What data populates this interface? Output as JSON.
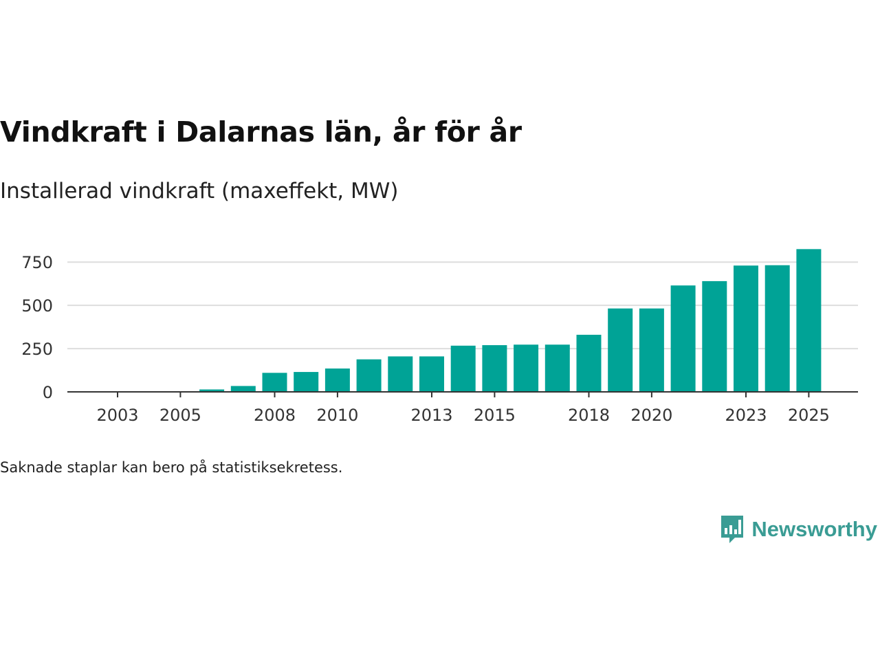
{
  "title": "Vindkraft i Dalarnas län, år för år",
  "subtitle": "Installerad vindkraft (maxeffekt, MW)",
  "footnote": "Saknade staplar kan bero på statistiksekretess.",
  "brand": {
    "name": "Newsworthy",
    "icon": "newsworthy-logo-icon"
  },
  "colors": {
    "bar": "#00a396",
    "grid": "#dddddd",
    "axis": "#333333",
    "text": "#333333",
    "brand": "#3a9c94"
  },
  "chart_data": {
    "type": "bar",
    "title": "Vindkraft i Dalarnas län, år för år",
    "ylabel": "Installerad vindkraft (maxeffekt, MW)",
    "xlabel": "",
    "categories": [
      "2003",
      "2004",
      "2005",
      "2006",
      "2007",
      "2008",
      "2009",
      "2010",
      "2011",
      "2012",
      "2013",
      "2014",
      "2015",
      "2016",
      "2017",
      "2018",
      "2019",
      "2020",
      "2021",
      "2022",
      "2023",
      "2024",
      "2025"
    ],
    "values": [
      0,
      0,
      0,
      14,
      34,
      110,
      115,
      135,
      188,
      205,
      205,
      267,
      270,
      273,
      273,
      330,
      482,
      482,
      615,
      640,
      730,
      732,
      825
    ],
    "x_tick_labels": [
      "2003",
      "2005",
      "2008",
      "2010",
      "2013",
      "2015",
      "2018",
      "2020",
      "2023",
      "2025"
    ],
    "y_ticks": [
      0,
      250,
      500,
      750
    ],
    "y_tick_labels": [
      "0",
      "250",
      "500",
      "750"
    ],
    "ylim": [
      0,
      825
    ],
    "grid": true
  }
}
